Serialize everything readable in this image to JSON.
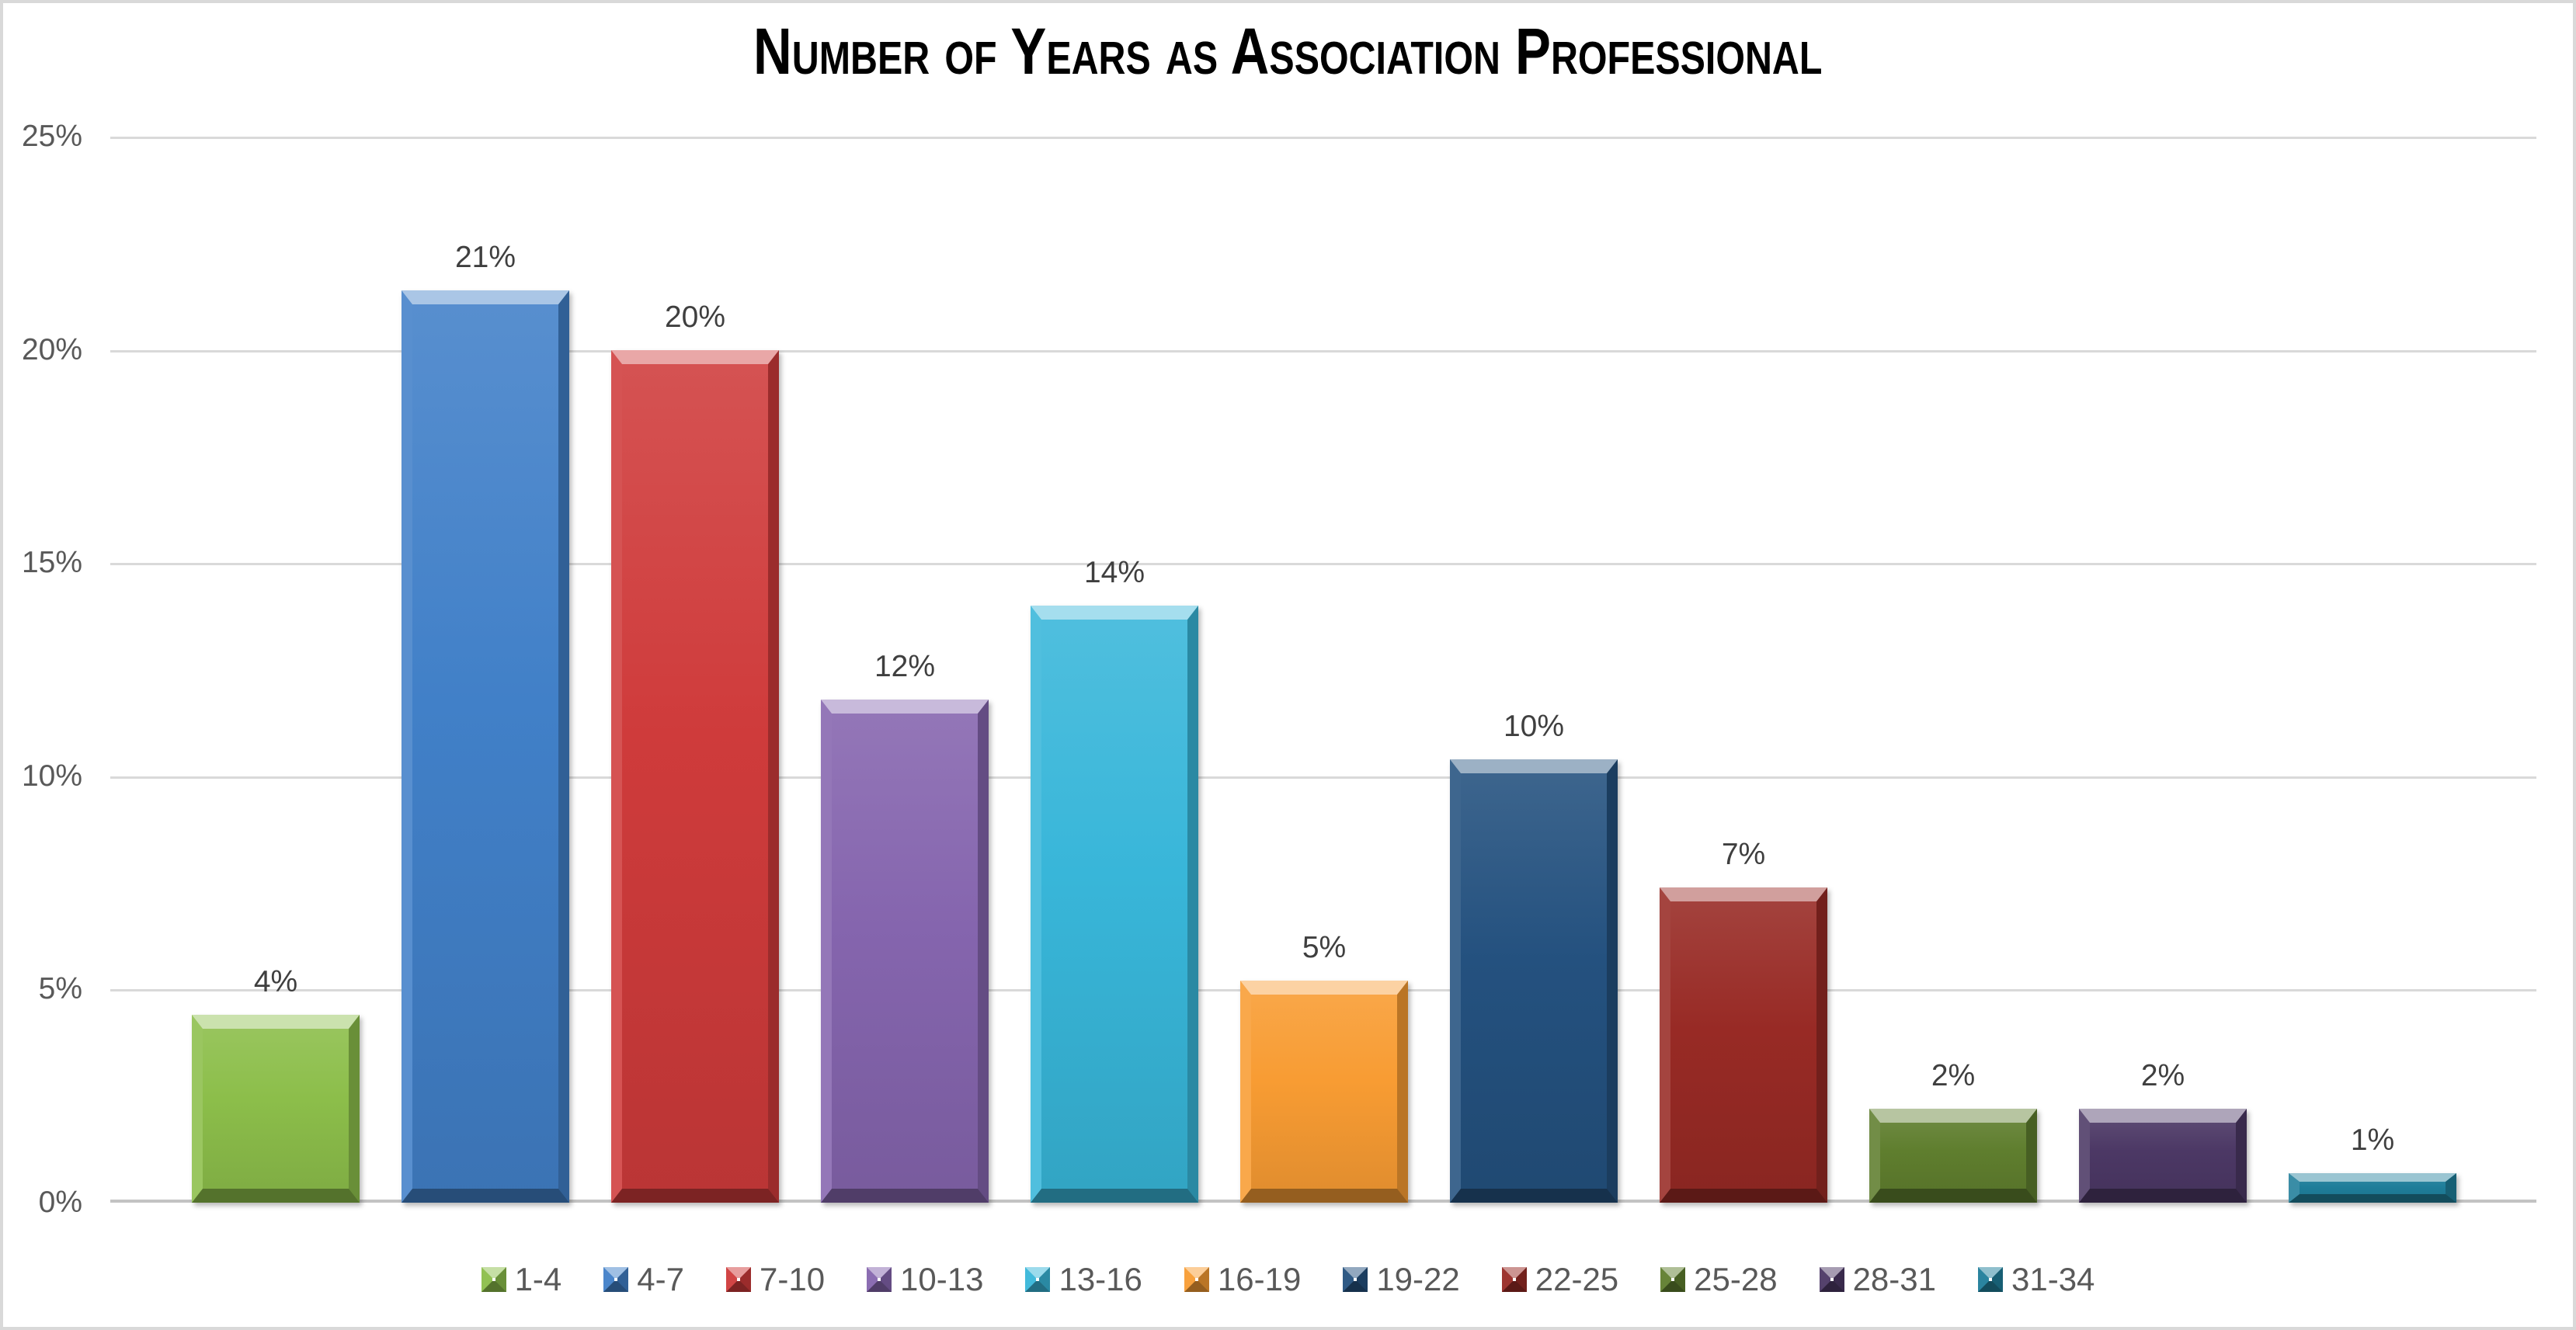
{
  "chart_data": {
    "type": "bar",
    "title": "Number of Years as Association Professional",
    "categories": [
      "1-4",
      "4-7",
      "7-10",
      "10-13",
      "13-16",
      "16-19",
      "19-22",
      "22-25",
      "25-28",
      "28-31",
      "31-34"
    ],
    "values": [
      4.4,
      21.4,
      20.0,
      11.8,
      14.0,
      5.2,
      10.4,
      7.4,
      2.2,
      2.2,
      0.7
    ],
    "bar_labels": [
      "4%",
      "21%",
      "20%",
      "12%",
      "14%",
      "5%",
      "10%",
      "7%",
      "2%",
      "2%",
      "1%"
    ],
    "bar_colors": [
      "#8CBE4A",
      "#4180C8",
      "#CF3B3B",
      "#8565AE",
      "#38B6D9",
      "#F89C33",
      "#24517F",
      "#982A25",
      "#5F7E2E",
      "#4C3865",
      "#1F7E9A"
    ],
    "xlabel": "",
    "ylabel": "",
    "ylim": [
      0,
      25
    ],
    "yticks": [
      "0%",
      "5%",
      "10%",
      "15%",
      "20%",
      "25%"
    ],
    "grid": true,
    "legend_position": "bottom",
    "legend_entries": [
      "1-4",
      "4-7",
      "7-10",
      "10-13",
      "13-16",
      "16-19",
      "19-22",
      "22-25",
      "25-28",
      "28-31",
      "31-34"
    ]
  },
  "styles": {
    "background": "#FFFFFF",
    "frame_border_color": "#D9D9D9",
    "grid_color": "#D9D9D9",
    "axis_line_color": "#C3C3C3",
    "tick_text_color": "#595959",
    "bar_label_color": "#3F3F3F",
    "legend_text_color": "#595959",
    "title_color": "#000000"
  }
}
